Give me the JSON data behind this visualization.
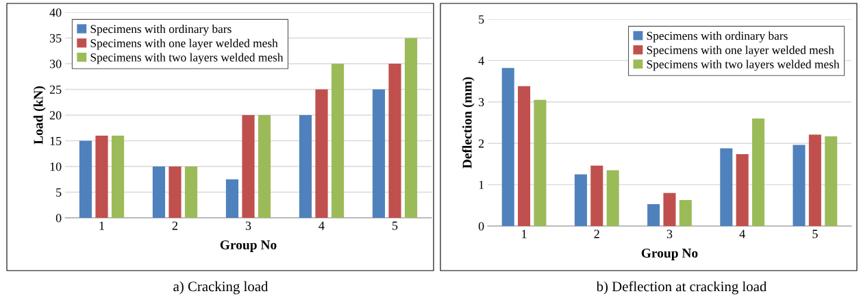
{
  "chart_data": [
    {
      "type": "bar",
      "xlabel": "Group No",
      "ylabel": "Load (kN)",
      "categories": [
        "1",
        "2",
        "3",
        "4",
        "5"
      ],
      "ylim": [
        0,
        40
      ],
      "yticks": [
        0,
        5,
        10,
        15,
        20,
        25,
        30,
        35,
        40
      ],
      "grid": "y",
      "legend": "top left",
      "annotations": [
        "a) Cracking load"
      ],
      "series": [
        {
          "name": "Specimens with ordinary bars",
          "color": "#4f81bd",
          "values": [
            15,
            10,
            7.5,
            20,
            25
          ]
        },
        {
          "name": "Specimens with one layer welded mesh",
          "color": "#c0504d",
          "values": [
            16,
            10,
            20,
            25,
            30
          ]
        },
        {
          "name": "Specimens with two layers welded mesh",
          "color": "#9bbb59",
          "values": [
            16,
            10,
            20,
            30,
            35
          ]
        }
      ]
    },
    {
      "type": "bar",
      "xlabel": "Group No",
      "ylabel": "Deflection (mm)",
      "categories": [
        "1",
        "2",
        "3",
        "4",
        "5"
      ],
      "ylim": [
        0,
        5
      ],
      "yticks": [
        0,
        1,
        2,
        3,
        4,
        5
      ],
      "grid": "y",
      "legend": "top right",
      "annotations": [
        "b) Deflection at cracking load"
      ],
      "series": [
        {
          "name": "Specimens with ordinary bars",
          "color": "#4f81bd",
          "values": [
            3.82,
            1.25,
            0.53,
            1.88,
            1.96
          ]
        },
        {
          "name": "Specimens with one layer welded mesh",
          "color": "#c0504d",
          "values": [
            3.38,
            1.46,
            0.8,
            1.74,
            2.21
          ]
        },
        {
          "name": "Specimens with two layers welded mesh",
          "color": "#9bbb59",
          "values": [
            3.05,
            1.35,
            0.63,
            2.6,
            2.17
          ]
        }
      ]
    }
  ]
}
